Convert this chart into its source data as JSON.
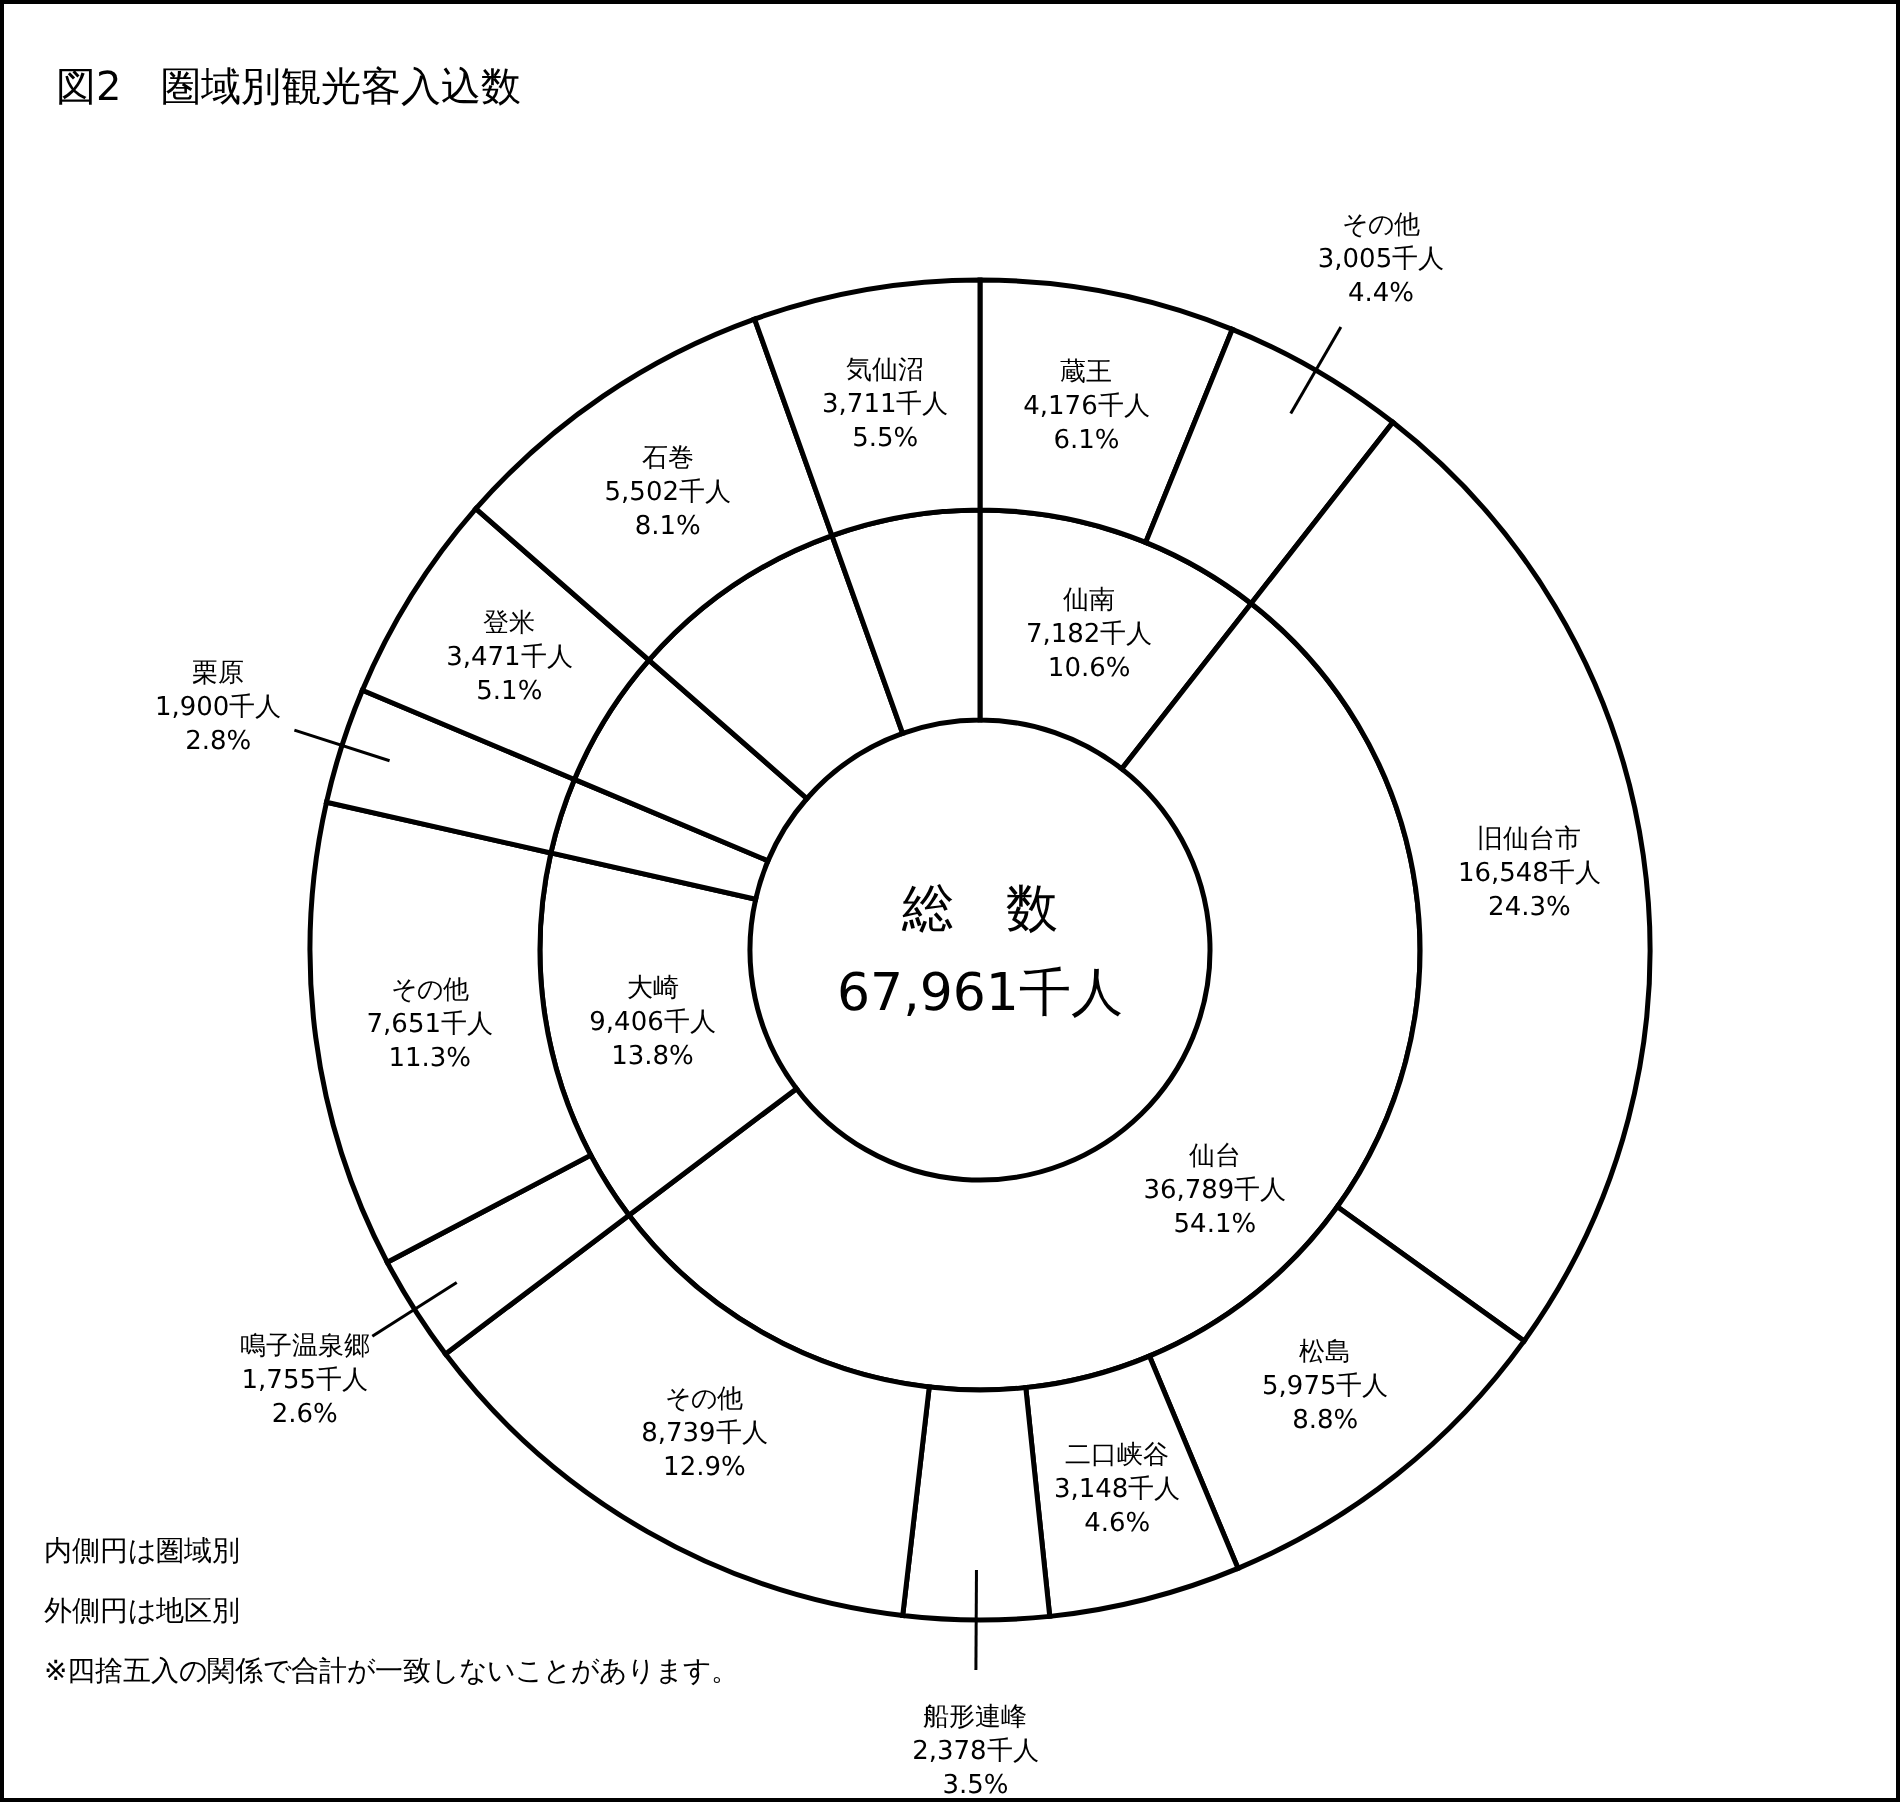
{
  "chart_data": [
    {
      "type": "donut",
      "title": "図2　圏域別観光客入込数",
      "categories": [
        "仙南",
        "仙台",
        "大崎",
        null,
        null,
        null,
        null
      ],
      "values": [
        7182,
        36789,
        9406,
        1900,
        3471,
        5502,
        3711
      ],
      "value_labels": [
        "7,182千人 10.6%",
        "36,789千人 54.1%",
        "9,406千人 13.8%",
        null,
        null,
        null,
        null
      ],
      "colors": [
        "#ffffff",
        "#ffffff",
        "#ffffff",
        "#ffffff",
        "#ffffff",
        "#ffffff",
        "#ffffff"
      ],
      "annotations": [
        "総　数",
        "67,961千人",
        "内側円は圏域別",
        "外側円は地区別",
        "※四捨五入の関係で合計が一致しないことがあります。"
      ]
    },
    {
      "type": "donut",
      "categories": [
        "蔵王",
        "その他",
        "旧仙台市",
        "松島",
        "二口峡谷",
        "船形連峰",
        "その他",
        "鳴子温泉郷",
        "その他",
        "栗原",
        "登米",
        "石巻",
        "気仙沼"
      ],
      "values": [
        4176,
        3005,
        16548,
        5975,
        3148,
        2378,
        8739,
        1755,
        7651,
        1900,
        3471,
        5502,
        3711
      ],
      "value_labels": [
        "4,176千人 6.1%",
        "3,005千人 4.4%",
        "16,548千人 24.3%",
        "5,975千人 8.8%",
        "3,148千人 4.6%",
        "2,378千人 3.5%",
        "8,739千人 12.9%",
        "1,755千人 2.6%",
        "7,651千人 11.3%",
        "1,900千人 2.8%",
        "3,471千人 5.1%",
        "5,502千人 8.1%",
        "3,711千人 5.5%"
      ],
      "colors": [
        "#ffffff",
        "#ffffff",
        "#ffffff",
        "#ffffff",
        "#ffffff",
        "#ffffff",
        "#ffffff",
        "#ffffff",
        "#ffffff",
        "#ffffff",
        "#ffffff",
        "#ffffff",
        "#ffffff"
      ]
    }
  ]
}
